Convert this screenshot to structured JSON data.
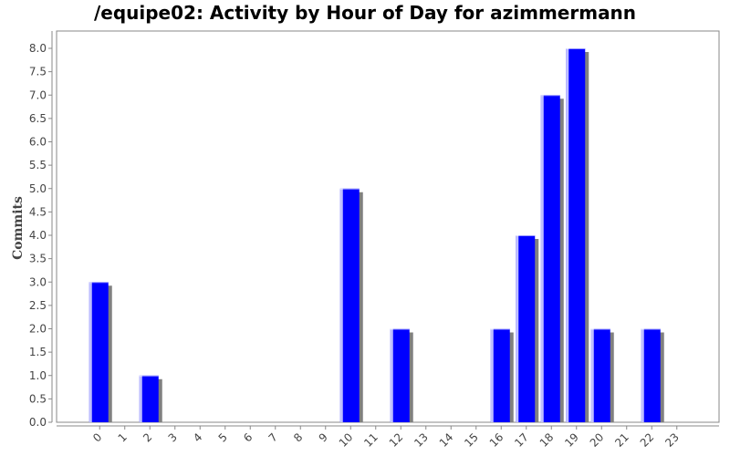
{
  "chart_data": {
    "type": "bar",
    "title": "/equipe02: Activity by Hour of Day for azimmermann",
    "xlabel": "",
    "ylabel": "Commits",
    "categories": [
      "0",
      "1",
      "2",
      "3",
      "4",
      "5",
      "6",
      "7",
      "8",
      "9",
      "10",
      "11",
      "12",
      "13",
      "14",
      "15",
      "16",
      "17",
      "18",
      "19",
      "20",
      "21",
      "22",
      "23"
    ],
    "values": [
      3,
      0,
      1,
      0,
      0,
      0,
      0,
      0,
      0,
      0,
      5,
      0,
      2,
      0,
      0,
      0,
      2,
      4,
      7,
      8,
      2,
      0,
      2,
      0
    ],
    "ylim": [
      0,
      8.4
    ],
    "yticks": [
      "0.0",
      "0.5",
      "1.0",
      "1.5",
      "2.0",
      "2.5",
      "3.0",
      "3.5",
      "4.0",
      "4.5",
      "5.0",
      "5.5",
      "6.0",
      "6.5",
      "7.0",
      "7.5",
      "8.0"
    ],
    "grid": false,
    "legend": "none",
    "bar_color": "#0000ff",
    "shadow_color": "#808080"
  }
}
